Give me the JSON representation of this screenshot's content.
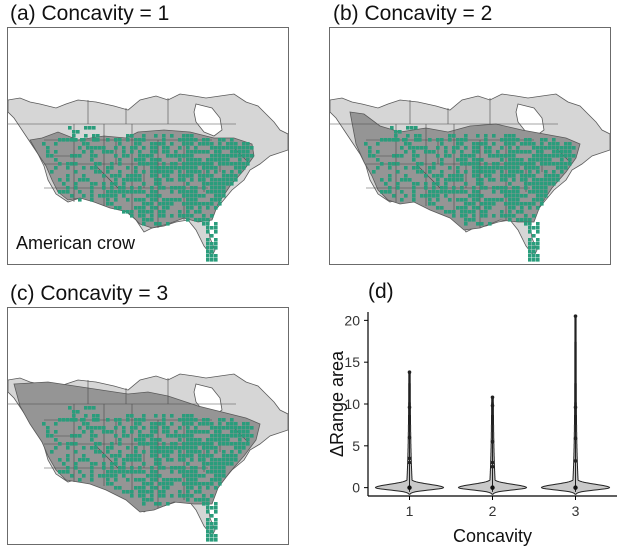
{
  "panels": {
    "a": {
      "title": "(a) Concavity = 1",
      "species": "American crow"
    },
    "b": {
      "title": "(b) Concavity = 2"
    },
    "c": {
      "title": "(c) Concavity = 3"
    },
    "d": {
      "title": "(d)"
    }
  },
  "colors": {
    "occurrence": "#2a9d7c",
    "range_hull": "#959595",
    "land": "#d6d6d6",
    "border": "#5a5a5a",
    "violin_fill": "#c9c9c9"
  },
  "chart_data": {
    "type": "violin",
    "title": "(d)",
    "xlabel": "Concavity",
    "ylabel": "ΔRange area",
    "categories": [
      "1",
      "2",
      "3"
    ],
    "ylim": [
      -1,
      21
    ],
    "yticks": [
      0,
      5,
      10,
      15,
      20
    ],
    "grid": false,
    "series": [
      {
        "name": "1",
        "median": 0,
        "max": 13.8,
        "outliers": [
          13.8,
          9.6,
          6.0,
          3.5,
          3.0
        ]
      },
      {
        "name": "2",
        "median": 0,
        "max": 10.8,
        "outliers": [
          10.8,
          9.8,
          5.5,
          3.0,
          2.5
        ]
      },
      {
        "name": "3",
        "median": 0,
        "max": 20.5,
        "outliers": [
          20.5,
          9.6,
          5.9,
          3.2
        ]
      }
    ]
  }
}
